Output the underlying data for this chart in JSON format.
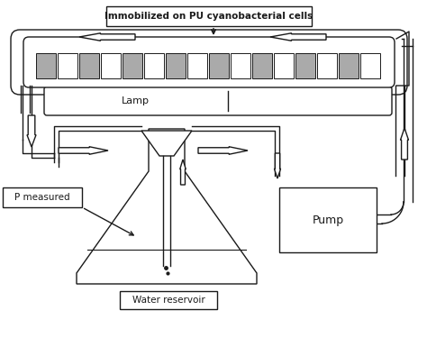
{
  "title": "Immobilized on PU cyanobacterial cells",
  "lamp_label": "Lamp",
  "pump_label": "Pump",
  "water_reservoir_label": "Water reservoir",
  "p_measured_label": "P measured",
  "bg_color": "#ffffff",
  "line_color": "#1a1a1a",
  "foam_color": "#aaaaaa",
  "tube_bg": "#f0f0f0"
}
